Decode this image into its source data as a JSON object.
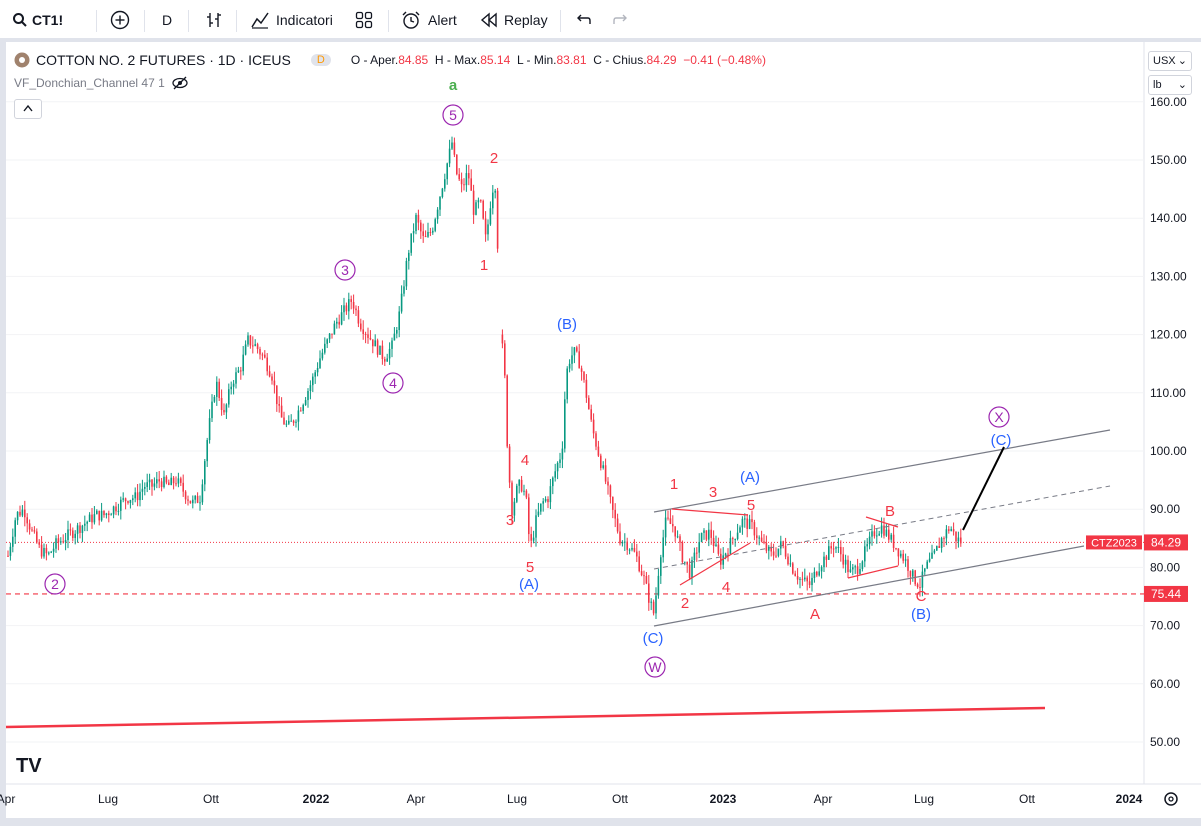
{
  "toolbar": {
    "symbol": "CT1!",
    "interval": "D",
    "indicators_label": "Indicatori",
    "alert_label": "Alert",
    "replay_label": "Replay"
  },
  "legend": {
    "title": "COTTON NO. 2 FUTURES · 1D · ICEUS",
    "badge": "D",
    "open_label": "O - Aper.",
    "open": "84.85",
    "high_label": "H - Max.",
    "high": "85.14",
    "low_label": "L - Min.",
    "low": "83.81",
    "close_label": "C - Chius.",
    "close": "84.29",
    "change": "−0.41 (−0.48%)",
    "indicator": "VF_Donchian_Channel 47 1"
  },
  "scale": {
    "currency": "USX",
    "unit": "lb"
  },
  "colors": {
    "up": "#089981",
    "down": "#f23645",
    "wave_purple": "#9c27b0",
    "wave_blue": "#2962ff",
    "wave_red": "#f23645",
    "wave_green": "#4caf50"
  },
  "chart_data": {
    "type": "candlestick",
    "title": "COTTON NO. 2 FUTURES · 1D · ICEUS",
    "ylim": [
      44,
      166
    ],
    "y_ticks": [
      50,
      60,
      70,
      80,
      90,
      100,
      110,
      120,
      130,
      140,
      150,
      160
    ],
    "x_ticks": [
      "Apr",
      "Lug",
      "Ott",
      "2022",
      "Apr",
      "Lug",
      "Ott",
      "2023",
      "Apr",
      "Lug",
      "Ott",
      "2024"
    ],
    "price_path": [
      [
        0,
        78
      ],
      [
        8,
        82
      ],
      [
        16,
        89
      ],
      [
        24,
        90
      ],
      [
        32,
        86
      ],
      [
        40,
        83
      ],
      [
        48,
        82
      ],
      [
        56,
        84
      ],
      [
        64,
        85
      ],
      [
        72,
        86
      ],
      [
        80,
        87
      ],
      [
        88,
        88
      ],
      [
        96,
        89
      ],
      [
        104,
        89
      ],
      [
        112,
        90
      ],
      [
        120,
        91
      ],
      [
        128,
        92
      ],
      [
        136,
        92
      ],
      [
        144,
        94
      ],
      [
        152,
        94
      ],
      [
        160,
        95
      ],
      [
        168,
        94
      ],
      [
        176,
        95
      ],
      [
        184,
        93
      ],
      [
        192,
        91
      ],
      [
        200,
        92
      ],
      [
        208,
        103
      ],
      [
        216,
        112
      ],
      [
        224,
        106
      ],
      [
        232,
        112
      ],
      [
        240,
        114
      ],
      [
        248,
        119
      ],
      [
        256,
        118
      ],
      [
        264,
        116
      ],
      [
        272,
        113
      ],
      [
        280,
        106
      ],
      [
        288,
        104
      ],
      [
        296,
        106
      ],
      [
        304,
        109
      ],
      [
        312,
        112
      ],
      [
        320,
        116
      ],
      [
        328,
        119
      ],
      [
        336,
        122
      ],
      [
        344,
        124
      ],
      [
        352,
        126
      ],
      [
        360,
        122
      ],
      [
        368,
        120
      ],
      [
        376,
        118
      ],
      [
        384,
        116
      ],
      [
        392,
        118
      ],
      [
        400,
        124
      ],
      [
        408,
        134
      ],
      [
        416,
        140
      ],
      [
        424,
        136
      ],
      [
        432,
        138
      ],
      [
        440,
        144
      ],
      [
        448,
        150
      ],
      [
        452,
        153
      ],
      [
        456,
        148
      ],
      [
        462,
        145
      ],
      [
        468,
        148
      ],
      [
        474,
        141
      ],
      [
        480,
        143
      ],
      [
        486,
        136
      ],
      [
        492,
        145
      ],
      [
        496,
        146
      ],
      [
        500,
        120
      ],
      [
        504,
        116
      ],
      [
        508,
        98
      ],
      [
        512,
        90
      ],
      [
        518,
        94
      ],
      [
        522,
        94
      ],
      [
        526,
        92
      ],
      [
        530,
        83
      ],
      [
        536,
        88
      ],
      [
        542,
        91
      ],
      [
        548,
        92
      ],
      [
        556,
        97
      ],
      [
        562,
        100
      ],
      [
        566,
        113
      ],
      [
        570,
        116
      ],
      [
        574,
        117
      ],
      [
        580,
        115
      ],
      [
        586,
        110
      ],
      [
        592,
        104
      ],
      [
        598,
        100
      ],
      [
        604,
        96
      ],
      [
        612,
        90
      ],
      [
        620,
        85
      ],
      [
        628,
        84
      ],
      [
        636,
        82
      ],
      [
        644,
        78
      ],
      [
        650,
        74
      ],
      [
        654,
        72
      ],
      [
        660,
        82
      ],
      [
        666,
        88
      ],
      [
        674,
        87
      ],
      [
        682,
        82
      ],
      [
        690,
        79
      ],
      [
        700,
        85
      ],
      [
        710,
        86
      ],
      [
        720,
        81
      ],
      [
        730,
        84
      ],
      [
        742,
        88
      ],
      [
        752,
        87
      ],
      [
        762,
        84
      ],
      [
        772,
        82
      ],
      [
        782,
        84
      ],
      [
        792,
        80
      ],
      [
        800,
        78
      ],
      [
        810,
        77
      ],
      [
        818,
        80
      ],
      [
        826,
        82
      ],
      [
        834,
        84
      ],
      [
        842,
        82
      ],
      [
        850,
        79
      ],
      [
        858,
        80
      ],
      [
        866,
        83
      ],
      [
        874,
        86
      ],
      [
        882,
        87
      ],
      [
        890,
        85
      ],
      [
        898,
        83
      ],
      [
        906,
        81
      ],
      [
        914,
        78
      ],
      [
        920,
        77
      ],
      [
        926,
        80
      ],
      [
        934,
        82
      ],
      [
        942,
        85
      ],
      [
        950,
        87
      ],
      [
        956,
        85
      ],
      [
        962,
        84.3
      ]
    ],
    "last_price": "84.29",
    "last_label": "CTZ2023",
    "support_level": "75.44"
  },
  "wave_labels": {
    "a": "a",
    "c1": "1",
    "c2": "2",
    "c3": "3",
    "c4": "4",
    "c5": "5",
    "w": "W",
    "x": "X",
    "A": "(A)",
    "B": "(B)",
    "C": "(C)",
    "r1": "1",
    "r2": "2",
    "r3": "3",
    "r4": "4",
    "r5": "5",
    "ra": "A",
    "rb": "B",
    "rc": "C"
  },
  "logo": "TV"
}
